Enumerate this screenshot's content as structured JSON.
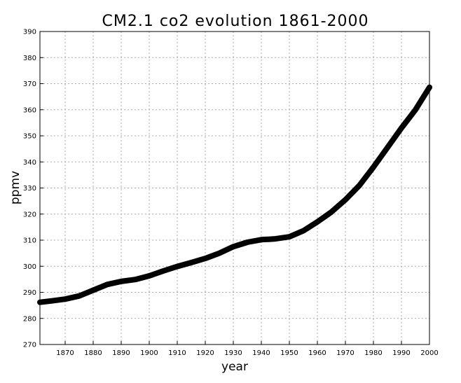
{
  "chart_data": {
    "type": "line",
    "title": "CM2.1  co2  evolution  1861-2000",
    "xlabel": "year",
    "ylabel": "ppmv",
    "xlim": [
      1861,
      2000
    ],
    "ylim": [
      270,
      390
    ],
    "x_ticks": [
      1870,
      1880,
      1890,
      1900,
      1910,
      1920,
      1930,
      1940,
      1950,
      1960,
      1970,
      1980,
      1990,
      2000
    ],
    "y_ticks": [
      270,
      280,
      290,
      300,
      310,
      320,
      330,
      340,
      350,
      360,
      370,
      380,
      390
    ],
    "grid": true,
    "series": [
      {
        "color": "#000000",
        "x": [
          1861,
          1865,
          1870,
          1875,
          1880,
          1885,
          1890,
          1895,
          1900,
          1905,
          1910,
          1915,
          1920,
          1925,
          1930,
          1935,
          1940,
          1945,
          1950,
          1955,
          1960,
          1965,
          1970,
          1975,
          1980,
          1985,
          1990,
          1995,
          2000
        ],
        "y": [
          286.2,
          286.7,
          287.4,
          288.6,
          290.8,
          293.0,
          294.2,
          294.9,
          296.3,
          298.2,
          299.9,
          301.4,
          303.0,
          305.0,
          307.5,
          309.2,
          310.2,
          310.5,
          311.3,
          313.6,
          317.0,
          320.8,
          325.5,
          331.0,
          338.0,
          345.5,
          353.0,
          360.0,
          368.6
        ]
      }
    ]
  }
}
